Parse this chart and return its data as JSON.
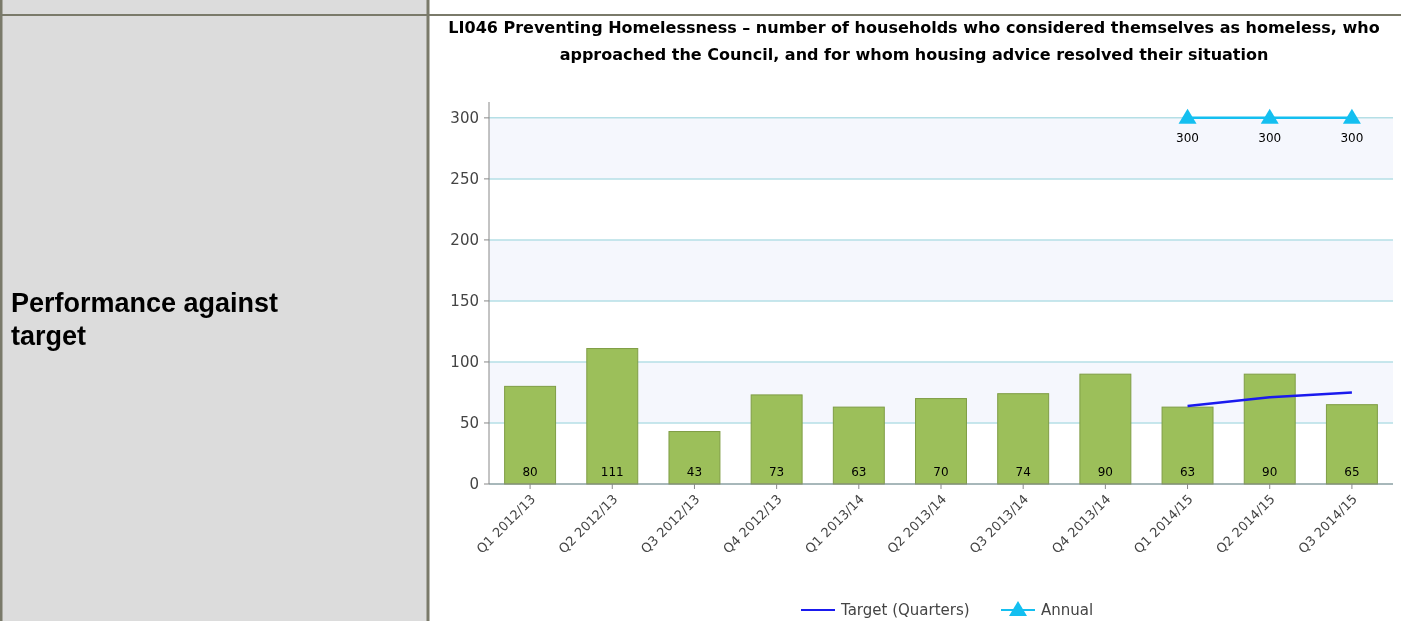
{
  "chart_data": {
    "type": "bar",
    "title": "LI046 Preventing Homelessness – number of households who considered themselves as homeless, who approached the Council, and for whom housing advice resolved their situation",
    "annotations": [
      "Performance against target"
    ],
    "categories": [
      "Q1 2012/13",
      "Q2 2012/13",
      "Q3 2012/13",
      "Q4 2012/13",
      "Q1 2013/14",
      "Q2 2013/14",
      "Q3 2013/14",
      "Q4 2013/14",
      "Q1 2014/15",
      "Q2 2014/15",
      "Q3 2014/15"
    ],
    "series": [
      {
        "color": "#9cbf5a",
        "values": [
          80,
          111,
          43,
          73,
          63,
          70,
          74,
          90,
          63,
          90,
          65
        ],
        "value_labels": [
          "80",
          "111",
          "43",
          "73",
          "63",
          "70",
          "74",
          "90",
          "63",
          "90",
          "65"
        ]
      },
      {
        "type": "line",
        "name": "Target (Quarters)",
        "color": "#1a1aee",
        "marker": "none",
        "values": [
          null,
          null,
          null,
          null,
          null,
          null,
          null,
          null,
          64,
          71,
          75
        ]
      },
      {
        "type": "line",
        "name": "Annual",
        "color": "#14bff0",
        "marker": "triangle",
        "values": [
          null,
          null,
          null,
          null,
          null,
          null,
          null,
          null,
          300,
          300,
          300
        ],
        "value_labels": [
          null,
          null,
          null,
          null,
          null,
          null,
          null,
          null,
          "300",
          "300",
          "300"
        ]
      }
    ],
    "ylim": [
      0,
      313
    ],
    "yticks": [
      0,
      50,
      100,
      150,
      200,
      250,
      300
    ],
    "grid": "y",
    "legend": "bottom"
  }
}
